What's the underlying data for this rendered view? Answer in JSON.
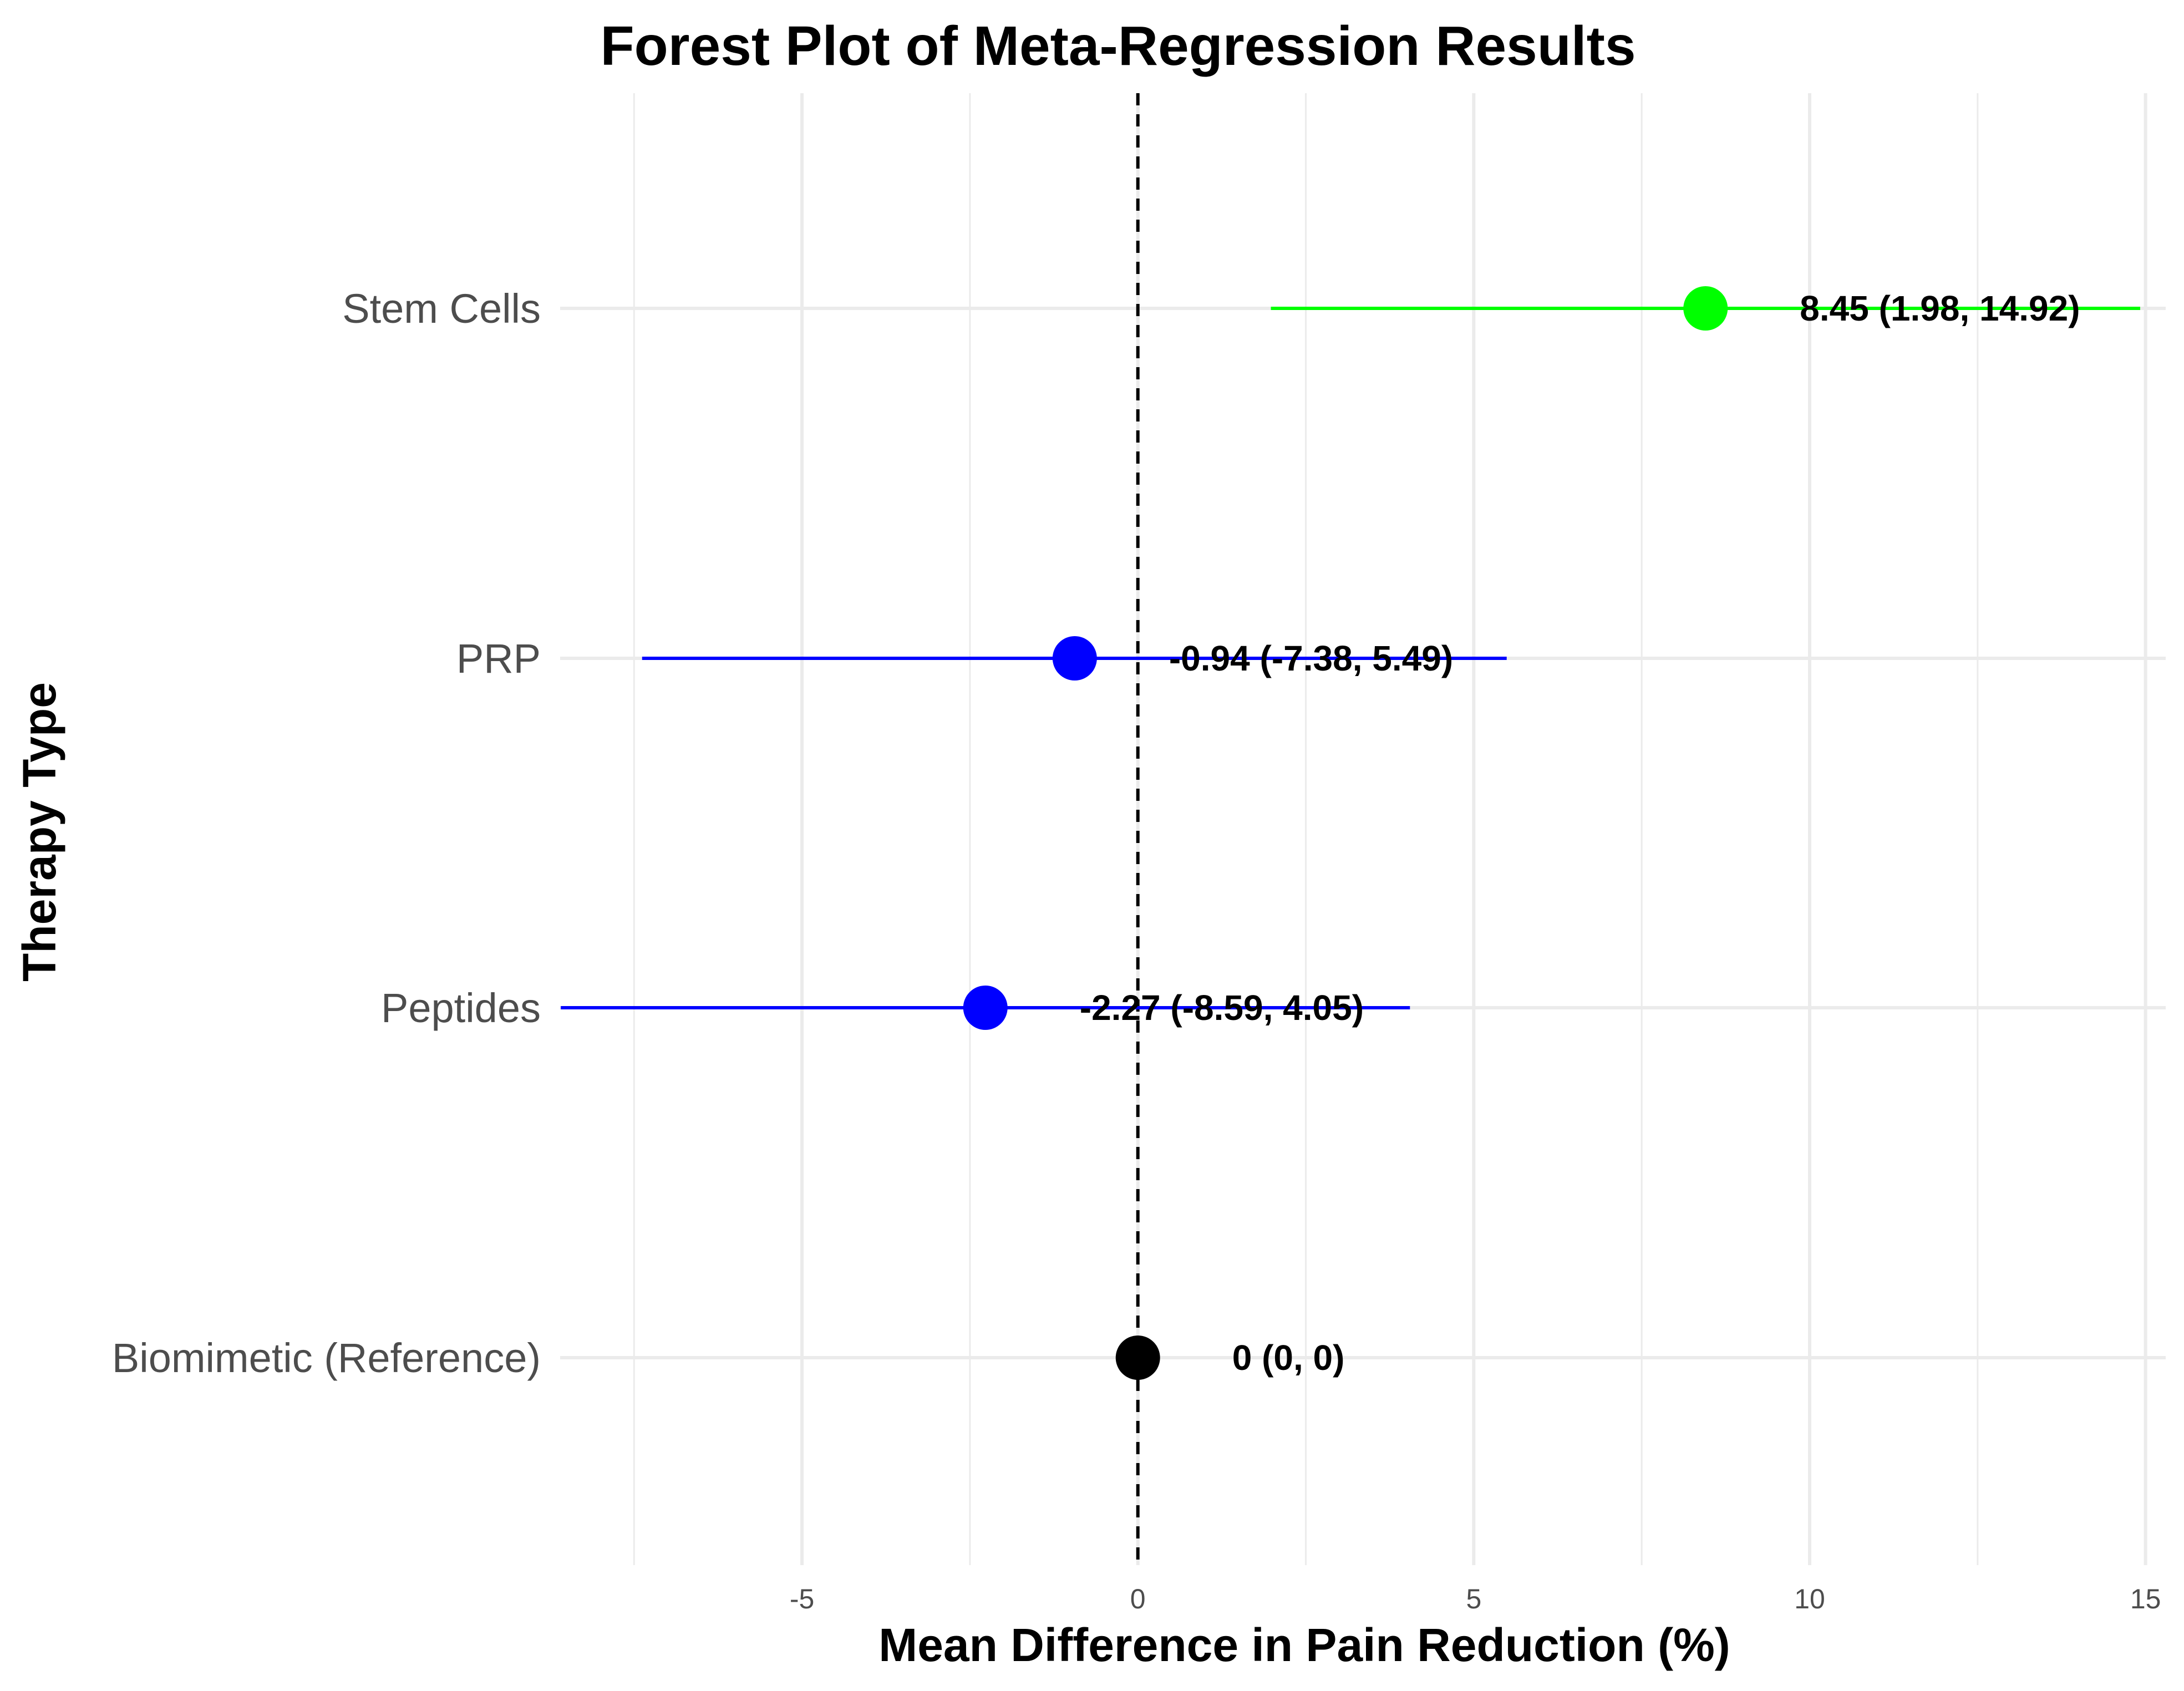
{
  "chart_data": {
    "type": "forest",
    "title": "Forest Plot of Meta-Regression Results",
    "xlabel": "Mean Difference in Pain Reduction (%)",
    "ylabel": "Therapy Type",
    "xlim": [
      -8.6,
      15.3
    ],
    "xticks": [
      -5,
      0,
      5,
      10,
      15
    ],
    "x_tick_labels": [
      "-5",
      "0",
      "5",
      "10",
      "15"
    ],
    "reference_line": 0,
    "grid": true,
    "legend": "none",
    "rows": [
      {
        "category": "Biomimetic (Reference)",
        "estimate": 0,
        "ci_low": 0,
        "ci_high": 0,
        "label": "0 (0, 0)",
        "color": "#000000"
      },
      {
        "category": "Peptides",
        "estimate": -2.27,
        "ci_low": -8.59,
        "ci_high": 4.05,
        "label": "-2.27 (-8.59, 4.05)",
        "color": "#0000ff"
      },
      {
        "category": "PRP",
        "estimate": -0.94,
        "ci_low": -7.38,
        "ci_high": 5.49,
        "label": "-0.94 (-7.38, 5.49)",
        "color": "#0000ff"
      },
      {
        "category": "Stem Cells",
        "estimate": 8.45,
        "ci_low": 1.98,
        "ci_high": 14.92,
        "label": "8.45 (1.98, 14.92)",
        "color": "#00ff00"
      }
    ]
  },
  "colors": {
    "grid": "#ebebeb",
    "reference_line": "#000000"
  }
}
